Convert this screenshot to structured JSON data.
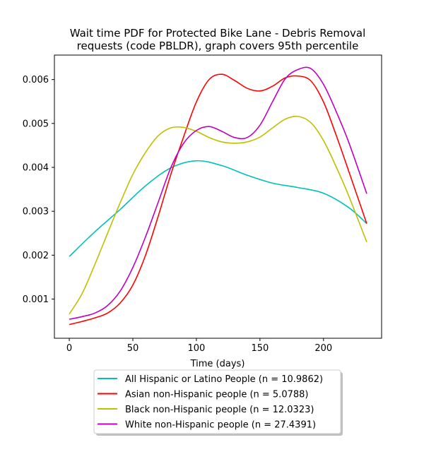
{
  "chart_data": {
    "type": "line",
    "title_line1": "Wait time PDF for Protected Bike Lane - Debris Removal",
    "title_line2": "requests (code PBLDR), graph covers 95th percentile",
    "xlabel": "Time (days)",
    "ylabel": "",
    "xlim": [
      -11.7,
      245.7
    ],
    "ylim": [
      0.000108,
      0.006557
    ],
    "x_ticks": [
      0,
      50,
      100,
      150,
      200
    ],
    "y_ticks": [
      0.001,
      0.002,
      0.003,
      0.004,
      0.005,
      0.006
    ],
    "y_tick_labels": [
      "0.001",
      "0.002",
      "0.003",
      "0.004",
      "0.005",
      "0.006"
    ],
    "grid": false,
    "legend_position": "below-plot",
    "series": [
      {
        "name": "All Hispanic or Latino People (n = 10.9862)",
        "color": "#00bfbf",
        "x": [
          0,
          20,
          40,
          60,
          80,
          100,
          120,
          140,
          160,
          180,
          200,
          220,
          234
        ],
        "y": [
          0.00197,
          0.00253,
          0.00304,
          0.00358,
          0.00399,
          0.00415,
          0.00404,
          0.00382,
          0.00364,
          0.00354,
          0.00341,
          0.00308,
          0.00272
        ]
      },
      {
        "name": "Asian non-Hispanic people (n = 5.0788)",
        "color": "#ff0000",
        "x": [
          0,
          10,
          20,
          30,
          40,
          50,
          60,
          70,
          80,
          90,
          100,
          110,
          120,
          130,
          140,
          150,
          160,
          170,
          180,
          190,
          200,
          210,
          220,
          234
        ],
        "y": [
          0.00042,
          0.00049,
          0.00057,
          0.00068,
          0.00091,
          0.00132,
          0.002,
          0.00289,
          0.00385,
          0.0047,
          0.00549,
          0.006,
          0.00612,
          0.00598,
          0.0058,
          0.00574,
          0.00585,
          0.00604,
          0.00608,
          0.00597,
          0.00549,
          0.00473,
          0.0039,
          0.00272
        ]
      },
      {
        "name": "Black non-Hispanic people (n = 12.0323)",
        "color": "#bfbf00",
        "x": [
          0,
          10,
          20,
          30,
          40,
          50,
          60,
          70,
          80,
          90,
          100,
          110,
          120,
          130,
          140,
          150,
          160,
          170,
          180,
          190,
          200,
          210,
          220,
          234
        ],
        "y": [
          0.00066,
          0.00112,
          0.00178,
          0.00249,
          0.00319,
          0.00384,
          0.00434,
          0.00472,
          0.0049,
          0.00491,
          0.00482,
          0.00468,
          0.00458,
          0.00455,
          0.00458,
          0.00469,
          0.0049,
          0.0051,
          0.00516,
          0.00502,
          0.00461,
          0.00401,
          0.00334,
          0.0023
        ]
      },
      {
        "name": "White non-Hispanic people (n = 27.4391)",
        "color": "#bf00bf",
        "x": [
          0,
          10,
          20,
          30,
          40,
          50,
          60,
          70,
          80,
          90,
          100,
          110,
          120,
          130,
          140,
          150,
          160,
          170,
          180,
          190,
          200,
          210,
          220,
          234
        ],
        "y": [
          0.00054,
          0.0006,
          0.00068,
          0.00085,
          0.00118,
          0.00172,
          0.00242,
          0.00321,
          0.004,
          0.00455,
          0.00484,
          0.00493,
          0.00482,
          0.00468,
          0.00468,
          0.00496,
          0.0055,
          0.00602,
          0.00623,
          0.00625,
          0.00589,
          0.00527,
          0.00456,
          0.0034
        ]
      }
    ]
  }
}
